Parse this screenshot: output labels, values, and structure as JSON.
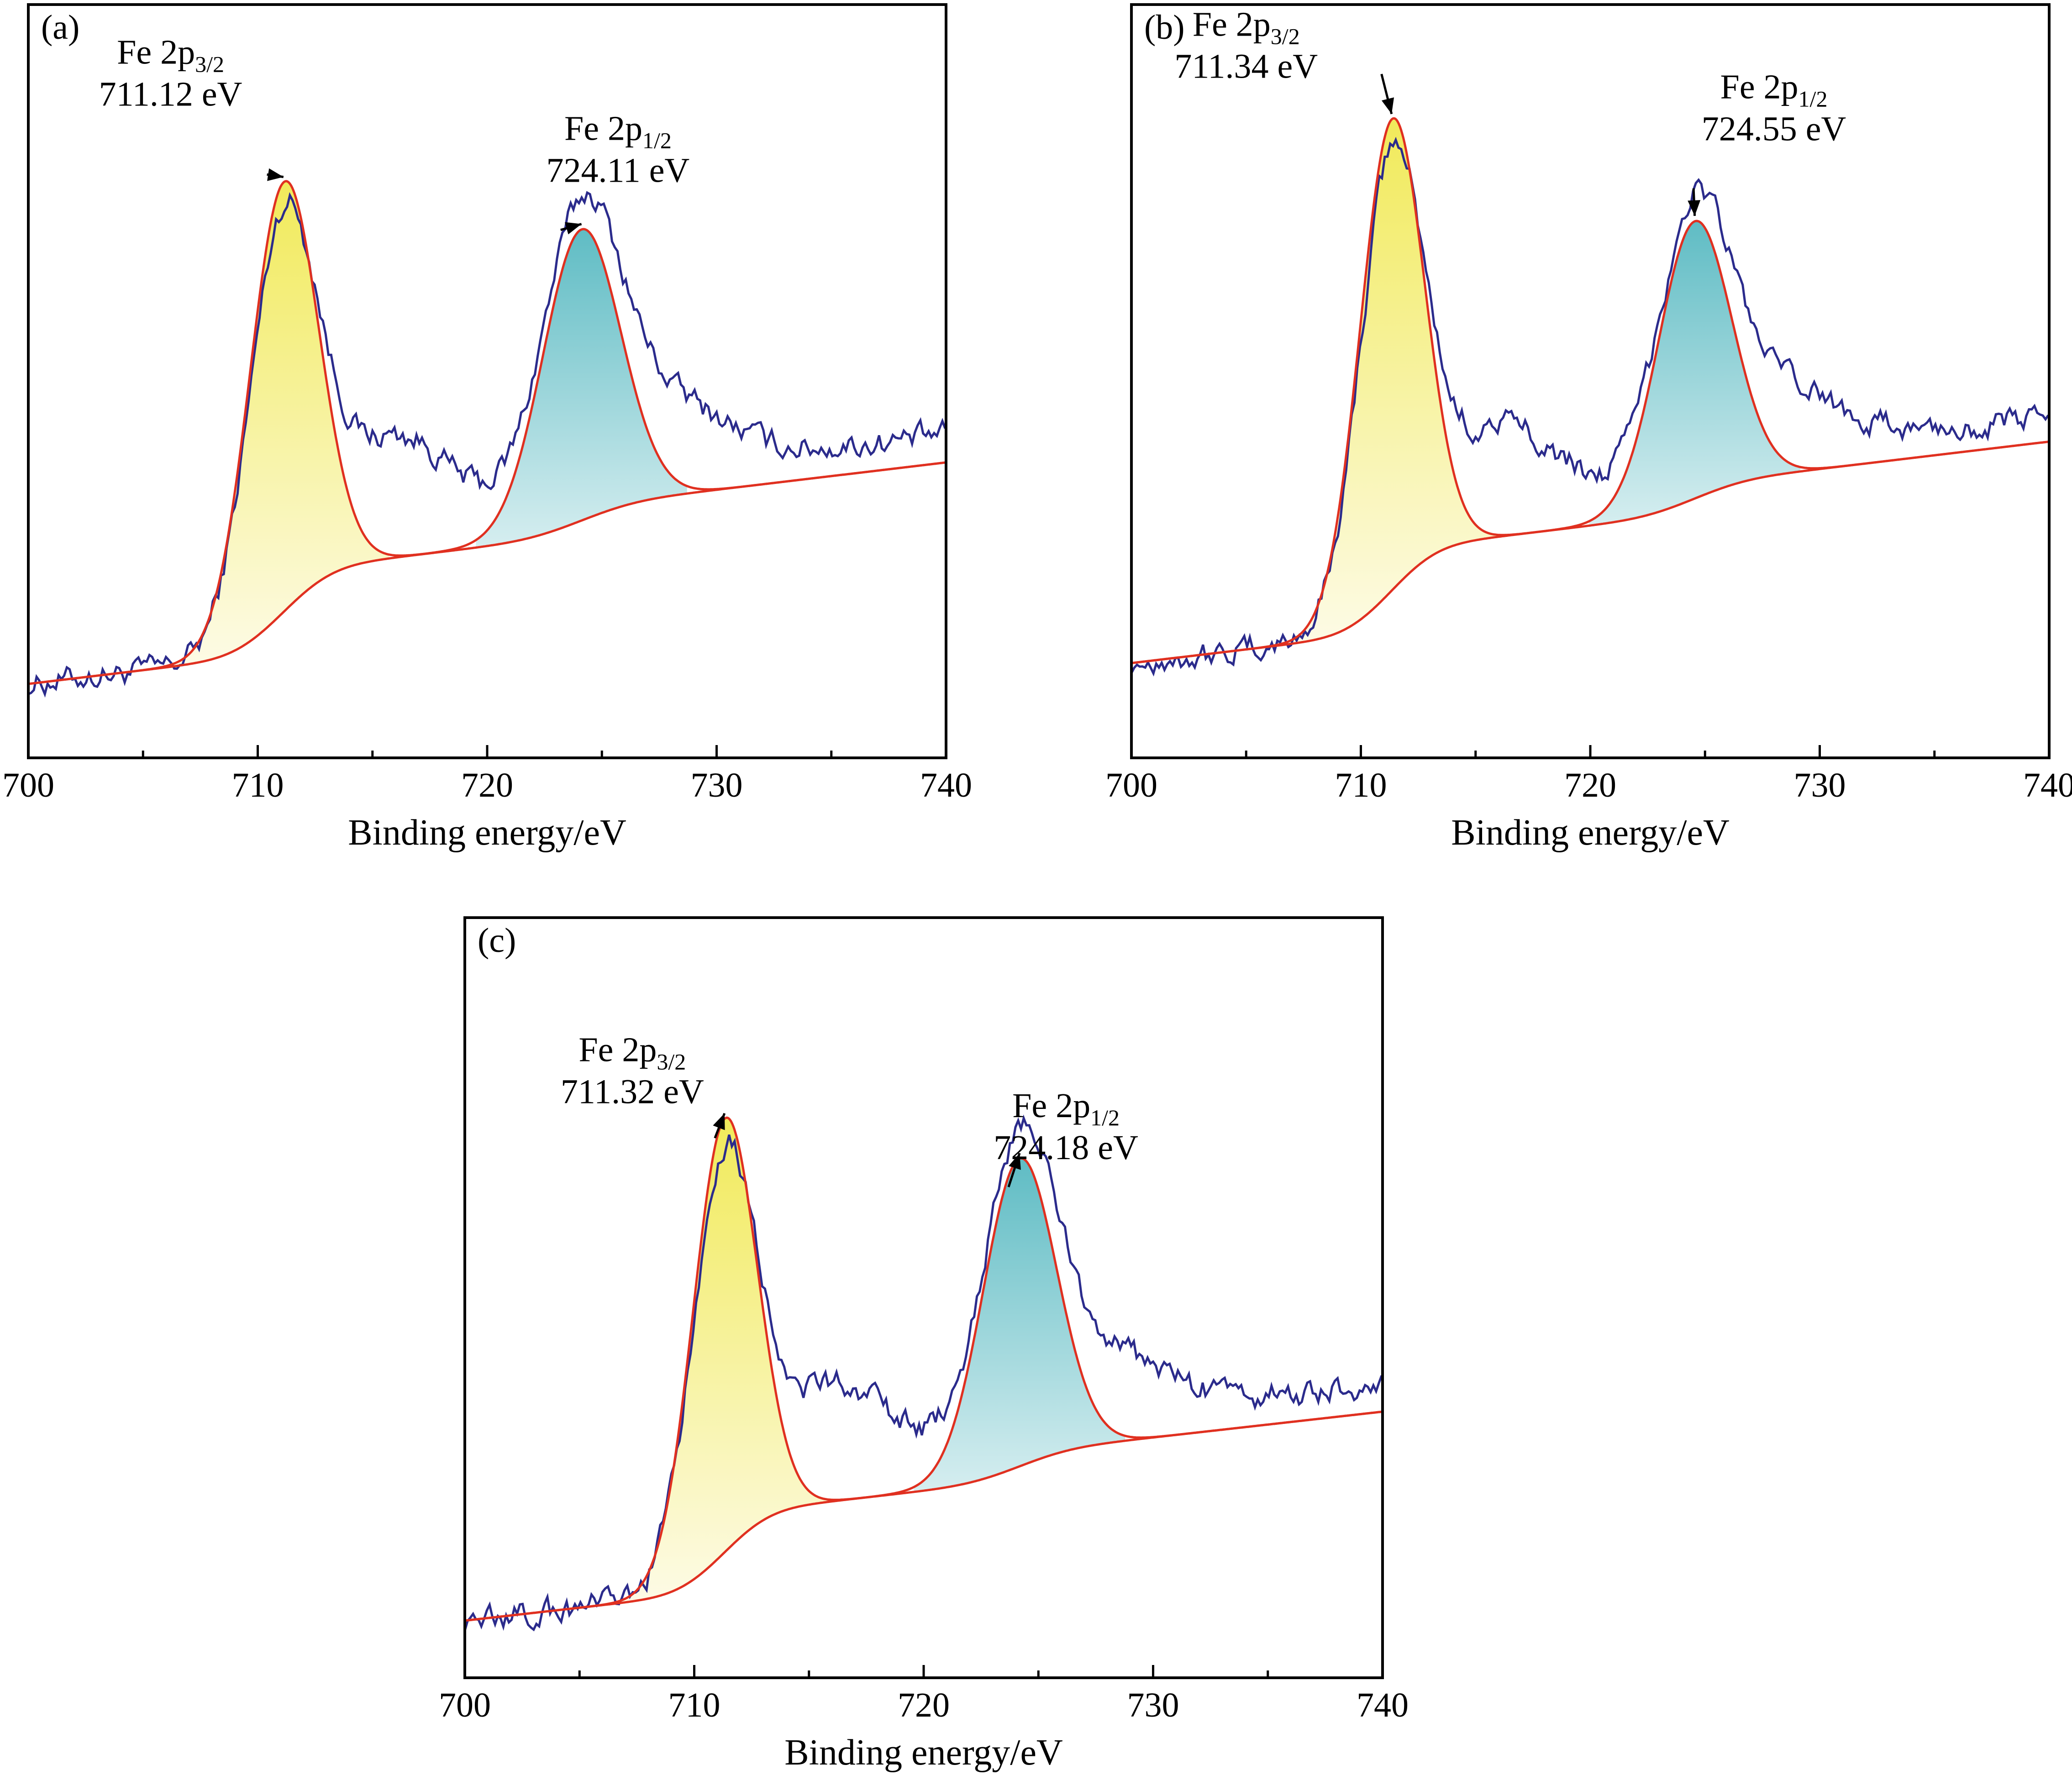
{
  "colors": {
    "raw_spectrum": "#2b2b8c",
    "fit_envelope": "#e03020",
    "peak_3_2_fill": "#f3ee74",
    "peak_1_2_fill": "#7fc9cf",
    "frame": "#000000"
  },
  "chart_data": [
    {
      "type": "line",
      "panel_label": "(a)",
      "xlabel": "Binding energy/eV",
      "ylabel": "",
      "xlim": [
        700,
        740
      ],
      "ylim": [
        0,
        1
      ],
      "x_ticks": [
        700,
        710,
        720,
        730,
        740
      ],
      "x_tick_labels": [
        "700",
        "710",
        "720",
        "730",
        "740"
      ],
      "baseline_start": 0.085,
      "baseline_end": 0.47,
      "shirley_step_fraction": 0.5,
      "series": [
        {
          "name": "Fe 2p3/2 component",
          "center": 711.12,
          "amplitude": 0.62,
          "sigma": 1.5
        },
        {
          "name": "Fe 2p1/2 component",
          "center": 724.11,
          "amplitude": 0.42,
          "sigma": 1.7
        }
      ],
      "raw_shoulder_amplitude": 0.14,
      "raw_plateau": [
        {
          "from": 712,
          "to": 740,
          "level": 0.04
        }
      ],
      "annotations": [
        {
          "main": "Fe 2p",
          "sub": "3/2",
          "energy": "711.12 eV",
          "peak": 711.12,
          "tx": 706.2,
          "ty": 0.98,
          "ax": 710.4,
          "ay": 0.82
        },
        {
          "main": "Fe 2p",
          "sub": "1/2",
          "energy": "724.11 eV",
          "peak": 724.11,
          "tx": 725.7,
          "ty": 0.87,
          "ax": 723.2,
          "ay": 0.74
        }
      ]
    },
    {
      "type": "line",
      "panel_label": "(b)",
      "xlabel": "Binding energy/eV",
      "ylabel": "",
      "xlim": [
        700,
        740
      ],
      "ylim": [
        0,
        1
      ],
      "x_ticks": [
        700,
        710,
        720,
        730,
        740
      ],
      "x_tick_labels": [
        "700",
        "710",
        "720",
        "730",
        "740"
      ],
      "baseline_start": 0.115,
      "baseline_end": 0.5,
      "shirley_step_fraction": 0.5,
      "series": [
        {
          "name": "Fe 2p3/2 component",
          "center": 711.34,
          "amplitude": 0.68,
          "sigma": 1.4
        },
        {
          "name": "Fe 2p1/2 component",
          "center": 724.55,
          "amplitude": 0.4,
          "sigma": 1.6
        }
      ],
      "raw_shoulder_amplitude": 0.13,
      "raw_plateau": [
        {
          "from": 712,
          "to": 740,
          "level": 0.035
        }
      ],
      "annotations": [
        {
          "main": "Fe 2p",
          "sub": "3/2",
          "energy": "711.34 eV",
          "peak": 711.34,
          "tx": 705.0,
          "ty": 1.02,
          "ax": 710.9,
          "ay": 0.965
        },
        {
          "main": "Fe 2p",
          "sub": "1/2",
          "energy": "724.55 eV",
          "peak": 724.55,
          "tx": 728.0,
          "ty": 0.93,
          "ax": 724.5,
          "ay": 0.8
        }
      ]
    },
    {
      "type": "line",
      "panel_label": "(c)",
      "xlabel": "Binding energy/eV",
      "ylabel": "",
      "xlim": [
        700,
        740
      ],
      "ylim": [
        0,
        1
      ],
      "x_ticks": [
        700,
        710,
        720,
        730,
        740
      ],
      "x_tick_labels": [
        "700",
        "710",
        "720",
        "730",
        "740"
      ],
      "baseline_start": 0.06,
      "baseline_end": 0.42,
      "shirley_step_fraction": 0.5,
      "series": [
        {
          "name": "Fe 2p3/2 component",
          "center": 711.32,
          "amplitude": 0.62,
          "sigma": 1.4
        },
        {
          "name": "Fe 2p1/2 component",
          "center": 724.18,
          "amplitude": 0.44,
          "sigma": 1.6
        }
      ],
      "raw_shoulder_amplitude": 0.13,
      "raw_plateau": [
        {
          "from": 712,
          "to": 740,
          "level": 0.04
        }
      ],
      "annotations": [
        {
          "main": "Fe 2p",
          "sub": "3/2",
          "energy": "711.32 eV",
          "peak": 711.32,
          "tx": 707.3,
          "ty": 0.86,
          "ax": 710.9,
          "ay": 0.75
        },
        {
          "main": "Fe 2p",
          "sub": "1/2",
          "energy": "724.18 eV",
          "peak": 724.18,
          "tx": 726.2,
          "ty": 0.78,
          "ax": 723.7,
          "ay": 0.68
        }
      ]
    }
  ]
}
